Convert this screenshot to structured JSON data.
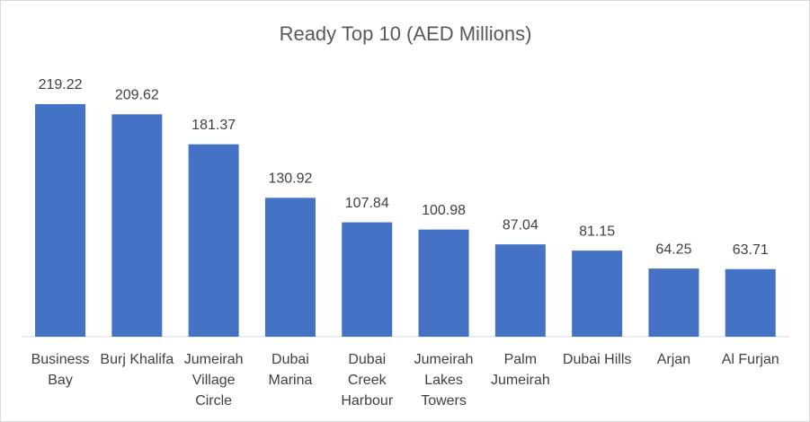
{
  "chart_data": {
    "type": "bar",
    "title": "Ready Top 10 (AED Millions)",
    "categories": [
      "Business Bay",
      "Burj Khalifa",
      "Jumeirah Village Circle",
      "Dubai Marina",
      "Dubai Creek Harbour",
      "Jumeirah Lakes Towers",
      "Palm Jumeirah",
      "Dubai Hills",
      "Arjan",
      "Al Furjan"
    ],
    "values": [
      219.22,
      209.62,
      181.37,
      130.92,
      107.84,
      100.98,
      87.04,
      81.15,
      64.25,
      63.71
    ],
    "color": "#4472c4",
    "ylim": [
      0,
      250
    ]
  }
}
